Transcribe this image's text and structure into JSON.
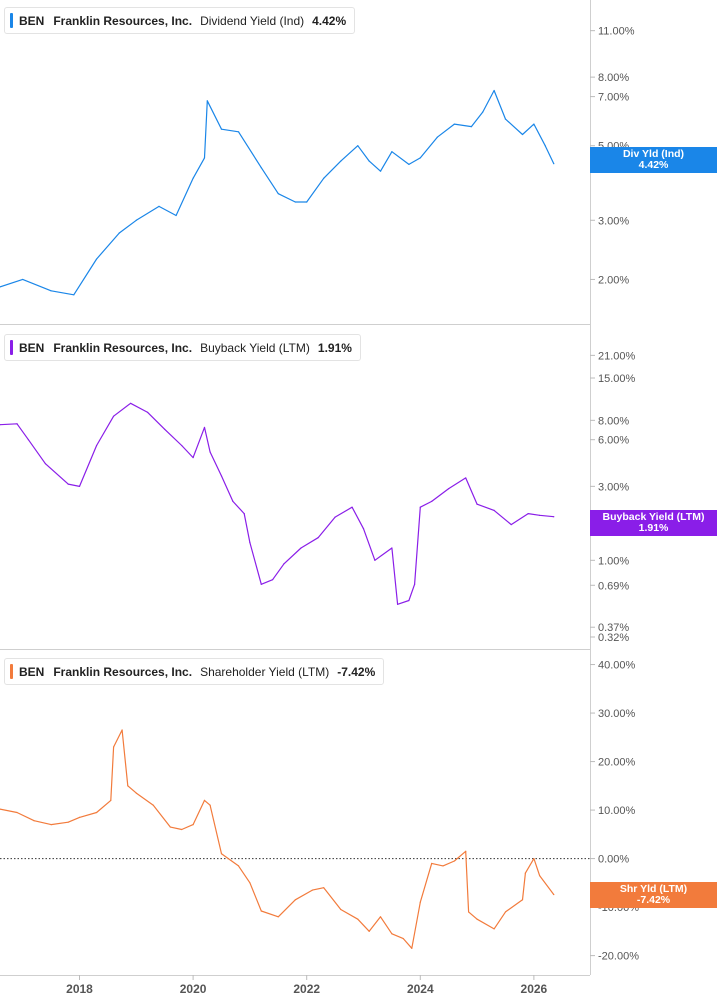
{
  "colors": {
    "dividend": "#1a86e8",
    "buyback": "#8a1ee8",
    "shareholder": "#f27b3c",
    "axis": "#d0d0d0",
    "tick_text": "#555555",
    "legend_border": "#e3e3e3"
  },
  "panels": [
    {
      "ticker": "BEN",
      "company": "Franklin Resources, Inc.",
      "metric": "Dividend Yield (Ind)",
      "value": "4.42%",
      "tag_line1": "Div Yld (Ind)",
      "tag_line2": "4.42%",
      "tick_labels": [
        "11.00%",
        "8.00%",
        "7.00%",
        "5.00%",
        "3.00%",
        "2.00%"
      ]
    },
    {
      "ticker": "BEN",
      "company": "Franklin Resources, Inc.",
      "metric": "Buyback Yield (LTM)",
      "value": "1.91%",
      "tag_line1": "Buyback Yield (LTM)",
      "tag_line2": "1.91%",
      "tick_labels": [
        "21.00%",
        "15.00%",
        "8.00%",
        "6.00%",
        "3.00%",
        "1.00%",
        "0.69%",
        "0.37%",
        "0.32%"
      ]
    },
    {
      "ticker": "BEN",
      "company": "Franklin Resources, Inc.",
      "metric": "Shareholder Yield (LTM)",
      "value": "-7.42%",
      "tag_line1": "Shr Yld (LTM)",
      "tag_line2": "-7.42%",
      "tick_labels": [
        "40.00%",
        "30.00%",
        "20.00%",
        "10.00%",
        "0.00%",
        "-10.00%",
        "-20.00%"
      ]
    }
  ],
  "x_axis": {
    "tick_labels": [
      "2018",
      "2020",
      "2022",
      "2024",
      "2026"
    ]
  },
  "chart_data": [
    {
      "type": "line",
      "title": "",
      "scale": "log",
      "ylim": [
        1.6,
        12.5
      ],
      "x": [
        "2016.6",
        "2017.0",
        "2017.5",
        "2017.9",
        "2018.3",
        "2018.7",
        "2019.0",
        "2019.4",
        "2019.7",
        "2020.0",
        "2020.2",
        "2020.25",
        "2020.5",
        "2020.8",
        "2021.2",
        "2021.5",
        "2021.8",
        "2022.0",
        "2022.3",
        "2022.6",
        "2022.9",
        "2023.1",
        "2023.3",
        "2023.5",
        "2023.8",
        "2024.0",
        "2024.3",
        "2024.6",
        "2024.9",
        "2025.1",
        "2025.3",
        "2025.5",
        "2025.8",
        "2026.0",
        "2026.2",
        "2026.35"
      ],
      "series": [
        {
          "values": [
            1.9,
            2.0,
            1.85,
            1.8,
            2.3,
            2.75,
            3.0,
            3.3,
            3.1,
            4.0,
            4.6,
            6.8,
            5.6,
            5.5,
            4.3,
            3.6,
            3.4,
            3.4,
            4.0,
            4.5,
            5.0,
            4.5,
            4.2,
            4.8,
            4.4,
            4.6,
            5.3,
            5.8,
            5.7,
            6.3,
            7.3,
            6.0,
            5.4,
            5.8,
            5.0,
            4.42
          ]
        }
      ]
    },
    {
      "type": "line",
      "title": "",
      "scale": "log",
      "ylim": [
        0.32,
        28
      ],
      "x": [
        "2016.6",
        "2016.9",
        "2017.1",
        "2017.4",
        "2017.8",
        "2018.0",
        "2018.3",
        "2018.6",
        "2018.9",
        "2019.2",
        "2019.5",
        "2019.8",
        "2020.0",
        "2020.2",
        "2020.3",
        "2020.5",
        "2020.7",
        "2020.9",
        "2021.0",
        "2021.2",
        "2021.4",
        "2021.6",
        "2021.9",
        "2022.2",
        "2022.5",
        "2022.8",
        "2023.0",
        "2023.2",
        "2023.5",
        "2023.6",
        "2023.8",
        "2023.9",
        "2024.0",
        "2024.2",
        "2024.5",
        "2024.8",
        "2025.0",
        "2025.3",
        "2025.6",
        "2025.9",
        "2026.1",
        "2026.35"
      ],
      "series": [
        {
          "values": [
            7.5,
            7.6,
            6.0,
            4.2,
            3.1,
            3.0,
            5.5,
            8.5,
            10.3,
            9.0,
            7.0,
            5.5,
            4.6,
            7.2,
            5.0,
            3.5,
            2.4,
            2.0,
            1.3,
            0.7,
            0.75,
            0.95,
            1.2,
            1.4,
            1.9,
            2.2,
            1.6,
            1.0,
            1.2,
            0.52,
            0.55,
            0.7,
            2.2,
            2.4,
            2.9,
            3.4,
            2.3,
            2.1,
            1.7,
            2.0,
            1.95,
            1.91
          ]
        }
      ]
    },
    {
      "type": "line",
      "title": "",
      "scale": "linear",
      "ylim": [
        -24,
        43
      ],
      "x": [
        "2016.6",
        "2016.9",
        "2017.2",
        "2017.5",
        "2017.8",
        "2018.0",
        "2018.3",
        "2018.55",
        "2018.6",
        "2018.75",
        "2018.85",
        "2019.0",
        "2019.3",
        "2019.6",
        "2019.8",
        "2020.0",
        "2020.2",
        "2020.3",
        "2020.5",
        "2020.8",
        "2021.0",
        "2021.2",
        "2021.5",
        "2021.8",
        "2022.1",
        "2022.3",
        "2022.6",
        "2022.9",
        "2023.1",
        "2023.3",
        "2023.5",
        "2023.7",
        "2023.85",
        "2024.0",
        "2024.2",
        "2024.4",
        "2024.6",
        "2024.8",
        "2024.85",
        "2025.0",
        "2025.3",
        "2025.5",
        "2025.8",
        "2025.85",
        "2026.0",
        "2026.1",
        "2026.35"
      ],
      "series": [
        {
          "values": [
            10.2,
            9.5,
            7.8,
            7.0,
            7.5,
            8.5,
            9.5,
            12.0,
            23.0,
            26.5,
            15.0,
            13.5,
            11.0,
            6.5,
            6.0,
            7.0,
            12.0,
            11.0,
            1.0,
            -1.5,
            -5.0,
            -10.8,
            -12.0,
            -8.5,
            -6.5,
            -6.0,
            -10.5,
            -12.5,
            -15.0,
            -12.0,
            -15.5,
            -16.5,
            -18.5,
            -9.0,
            -1.0,
            -1.5,
            -0.5,
            1.5,
            -11.0,
            -12.5,
            -14.5,
            -11.0,
            -8.5,
            -3.0,
            0.0,
            -3.5,
            -7.42
          ]
        }
      ]
    }
  ]
}
